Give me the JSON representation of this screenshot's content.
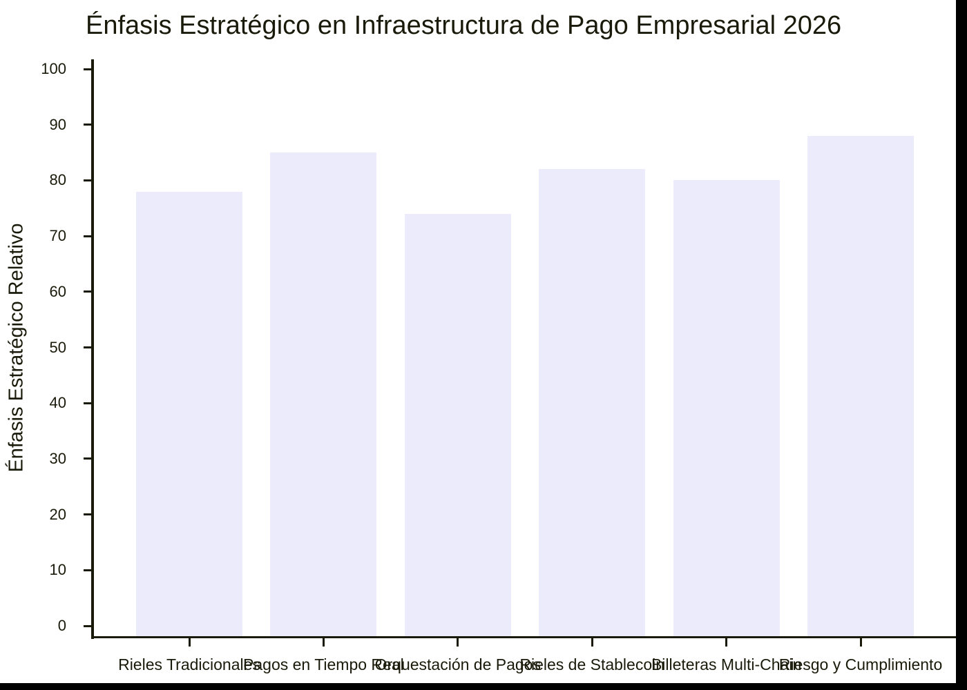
{
  "chart_data": {
    "type": "bar",
    "title": "Énfasis Estratégico en Infraestructura de Pago Empresarial 2026",
    "xlabel": "",
    "ylabel": "Énfasis Estratégico Relativo",
    "categories": [
      "Rieles Tradicionales",
      "Pagos en Tiempo Real",
      "Orquestación de Pagos",
      "Rieles de Stablecoin",
      "Billeteras Multi-Chain",
      "Riesgo y Cumplimiento"
    ],
    "values": [
      78,
      85,
      74,
      82,
      80,
      88
    ],
    "ylim": [
      0,
      100
    ],
    "yticks": [
      "0",
      "10",
      "20",
      "30",
      "40",
      "50",
      "60",
      "70",
      "80",
      "90",
      "100"
    ],
    "grid": false,
    "legend": null,
    "bar_color": "#ebebfc"
  }
}
